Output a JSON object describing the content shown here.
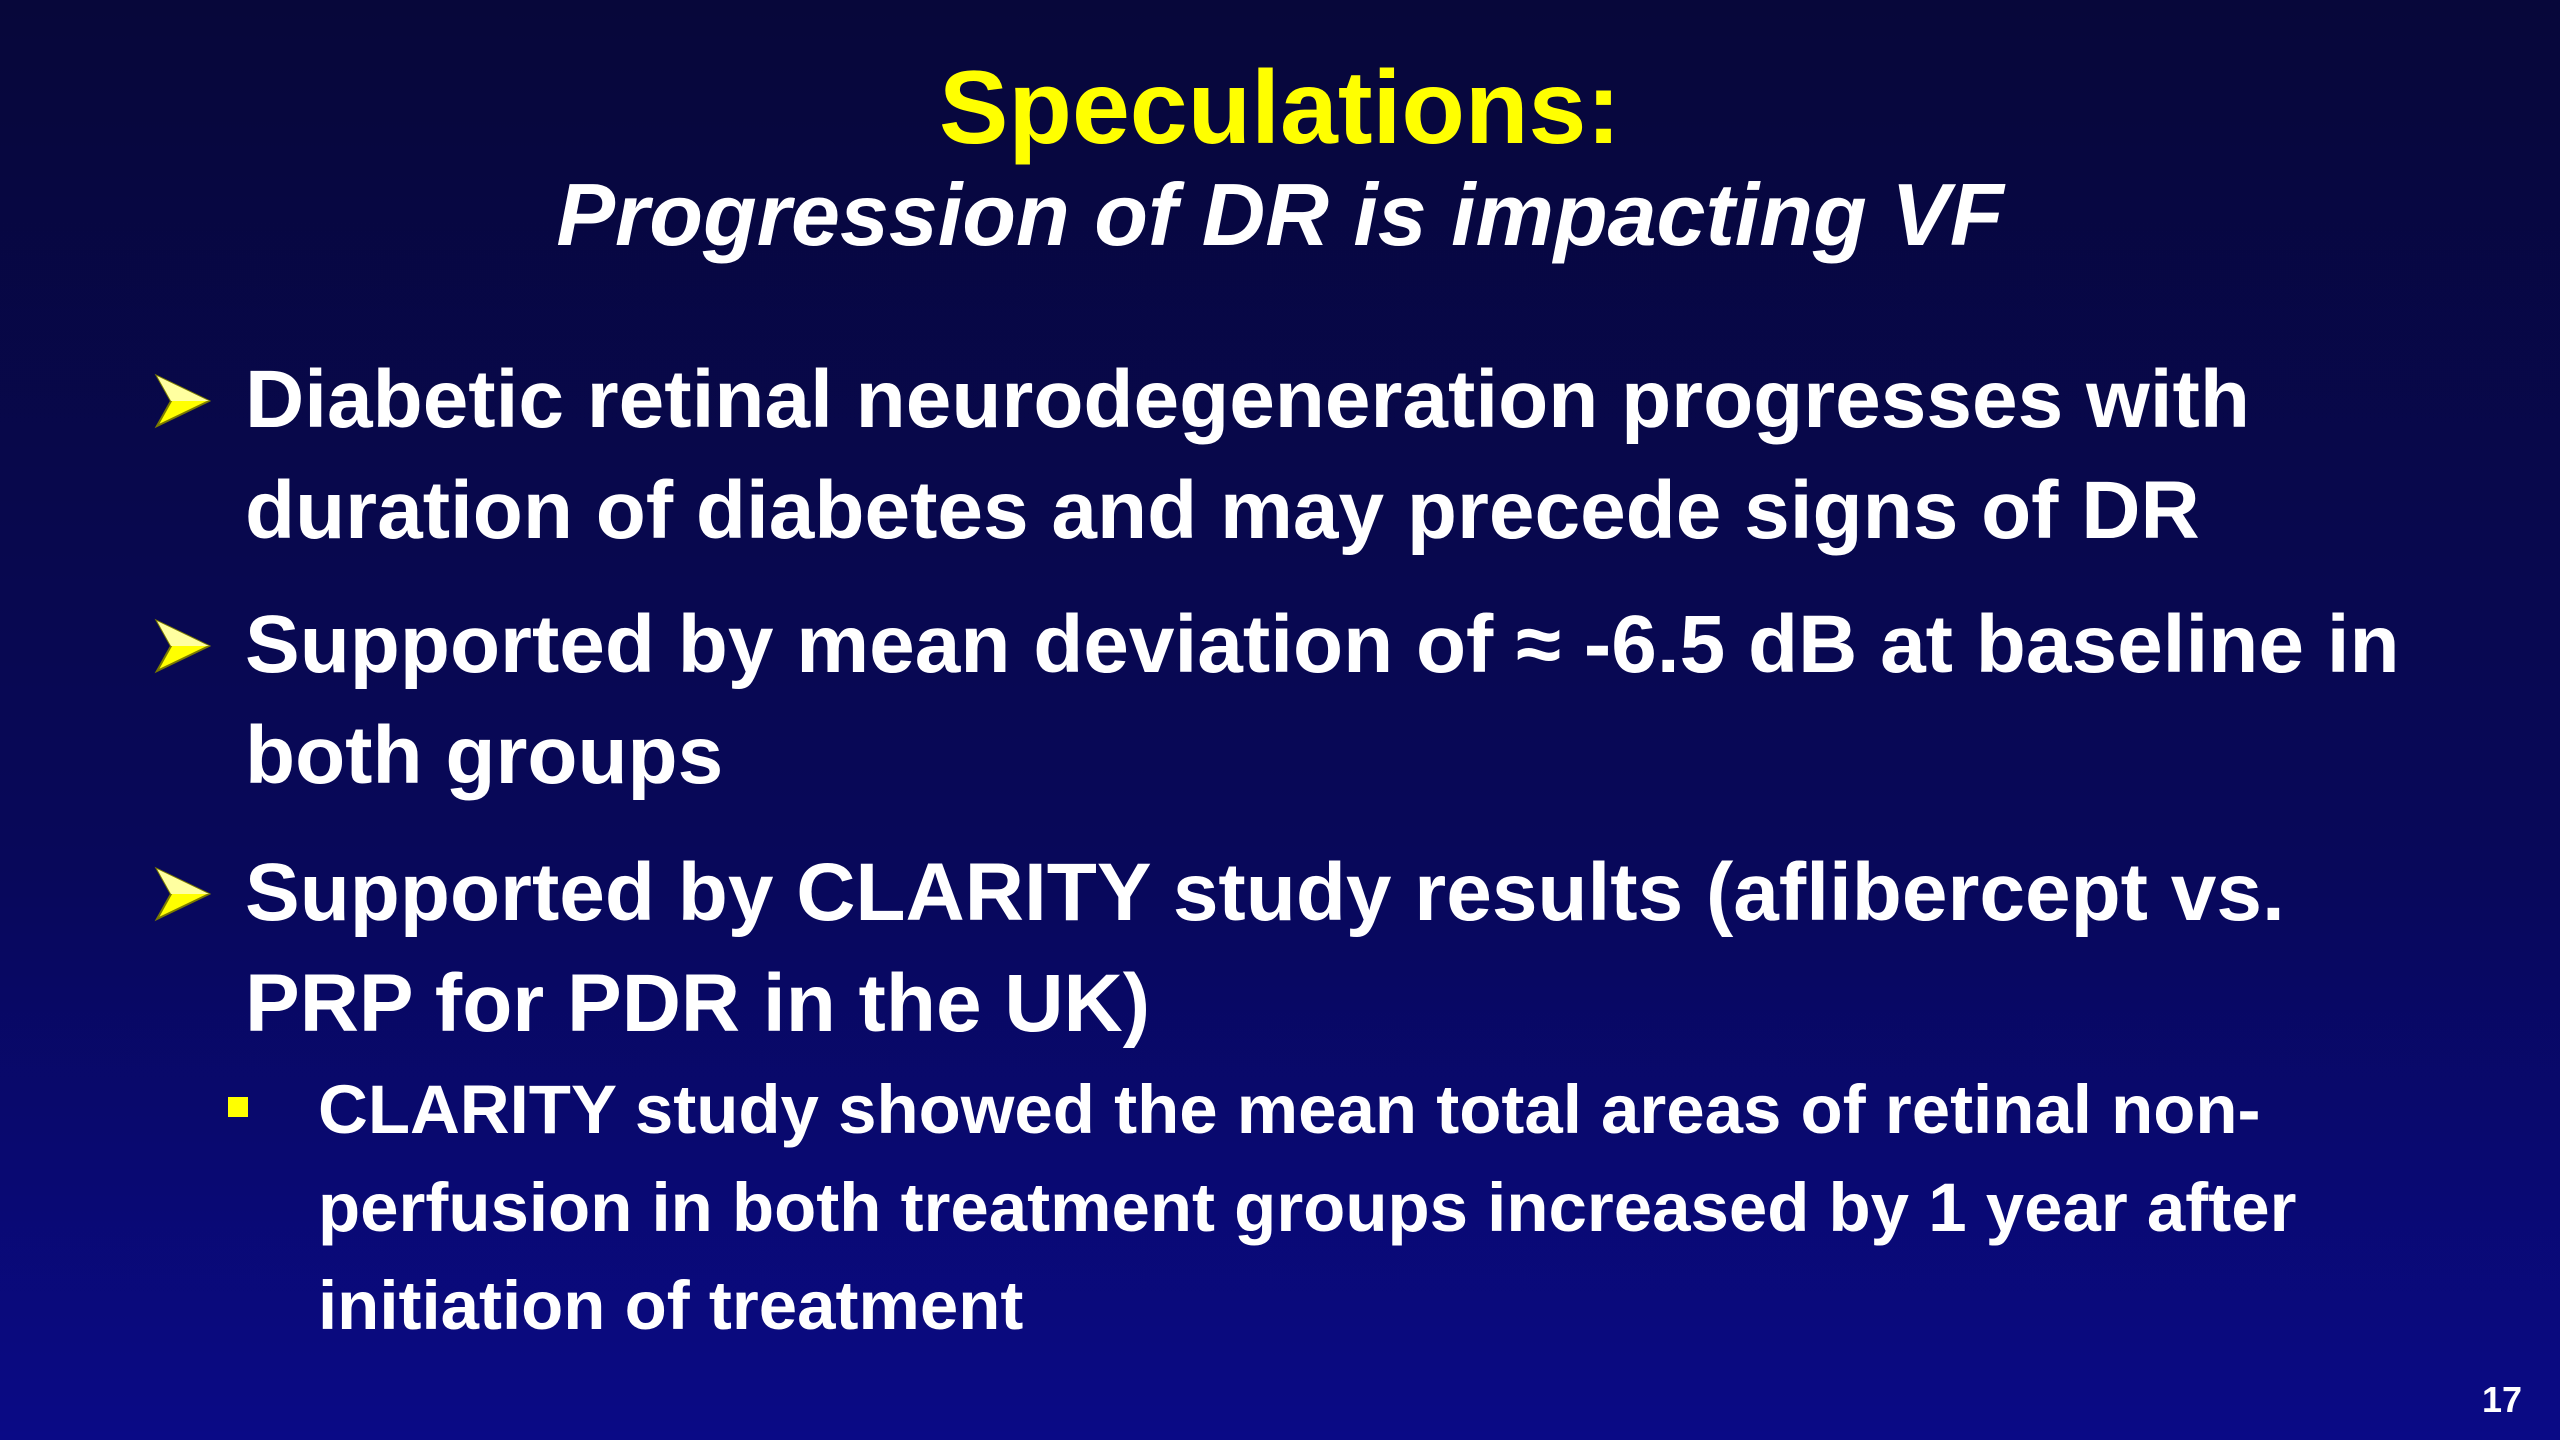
{
  "slide": {
    "title": "Speculations:",
    "subtitle": "Progression of DR is impacting VF",
    "bullets": [
      {
        "text": "Diabetic retinal neurodegeneration progresses with duration of diabetes and may precede signs of DR"
      },
      {
        "text": "Supported by mean deviation of ≈ -6.5 dB at baseline in both groups"
      },
      {
        "text": "Supported by CLARITY study results (aflibercept vs. PRP for PDR in the UK)",
        "sub_bullets": [
          "CLARITY study showed the mean total areas of retinal non-perfusion in both treatment groups increased by 1 year after initiation of treatment"
        ]
      }
    ],
    "page_number": "17"
  }
}
